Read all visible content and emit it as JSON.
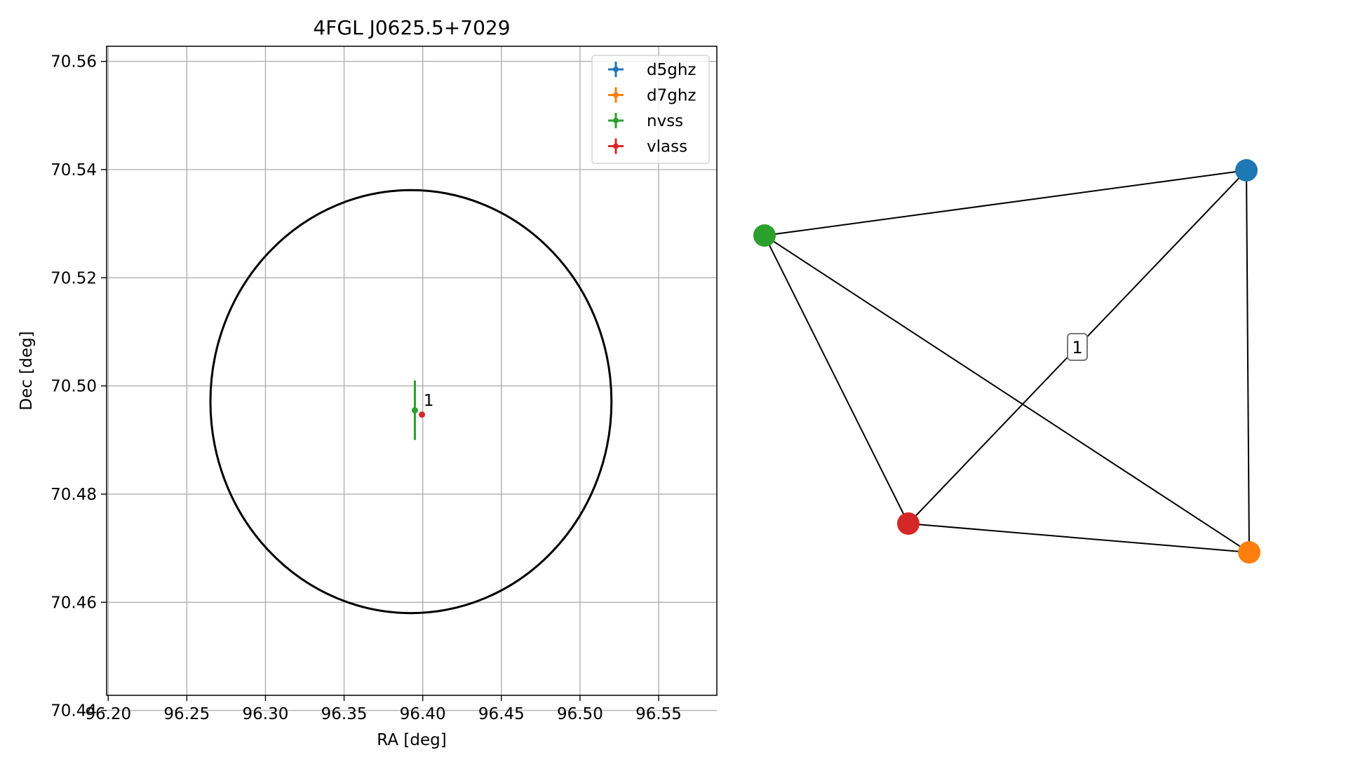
{
  "figure": {
    "background": "#ffffff",
    "palette": {
      "d5ghz": "#1f77b4",
      "d7ghz": "#ff7f0e",
      "nvss": "#2ca02c",
      "vlass": "#d62728",
      "axis": "#000000",
      "grid": "#b0b0b0"
    }
  },
  "chart_data": [
    {
      "type": "scatter",
      "title": "4FGL J0625.5+7029",
      "xlabel": "RA [deg]",
      "ylabel": "Dec [deg]",
      "xlim": [
        96.199,
        96.587
      ],
      "ylim": [
        70.4428,
        70.5628
      ],
      "xticks": [
        96.2,
        96.25,
        96.3,
        96.35,
        96.4,
        96.45,
        96.5,
        96.55
      ],
      "xtick_labels": [
        "96.20",
        "96.25",
        "96.30",
        "96.35",
        "96.40",
        "96.45",
        "96.50",
        "96.55"
      ],
      "yticks": [
        70.44,
        70.46,
        70.48,
        70.5,
        70.52,
        70.54,
        70.56
      ],
      "ytick_labels": [
        "70.44",
        "70.46",
        "70.48",
        "70.50",
        "70.52",
        "70.54",
        "70.56"
      ],
      "grid": true,
      "legend_position": "top-right",
      "ellipse": {
        "center": {
          "ra": 96.3925,
          "dec": 70.4971
        },
        "half_width_ra": 0.1275,
        "half_height_dec": 0.0391,
        "color": "#000000"
      },
      "series": [
        {
          "name": "d5ghz",
          "color": "#1f77b4",
          "points": []
        },
        {
          "name": "d7ghz",
          "color": "#ff7f0e",
          "points": []
        },
        {
          "name": "nvss",
          "color": "#2ca02c",
          "points": [
            {
              "ra": 96.395,
              "dec": 70.4955,
              "ra_err": 0.0004,
              "dec_err": 0.0055
            }
          ]
        },
        {
          "name": "vlass",
          "color": "#d62728",
          "points": [
            {
              "ra": 96.3995,
              "dec": 70.4947,
              "ra_err": 0.0,
              "dec_err": 0.0
            }
          ]
        }
      ],
      "annotations": [
        {
          "text": "1",
          "ra": 96.4005,
          "dec": 70.4963
        }
      ]
    },
    {
      "type": "network",
      "nodes": [
        {
          "id": "d5ghz",
          "color": "#1f77b4"
        },
        {
          "id": "d7ghz",
          "color": "#ff7f0e"
        },
        {
          "id": "nvss",
          "color": "#2ca02c"
        },
        {
          "id": "vlass",
          "color": "#d62728"
        }
      ],
      "edges": [
        {
          "source": "nvss",
          "target": "d5ghz"
        },
        {
          "source": "nvss",
          "target": "vlass"
        },
        {
          "source": "nvss",
          "target": "d7ghz"
        },
        {
          "source": "vlass",
          "target": "d5ghz",
          "label": "1"
        },
        {
          "source": "vlass",
          "target": "d7ghz"
        },
        {
          "source": "d5ghz",
          "target": "d7ghz"
        }
      ]
    }
  ]
}
